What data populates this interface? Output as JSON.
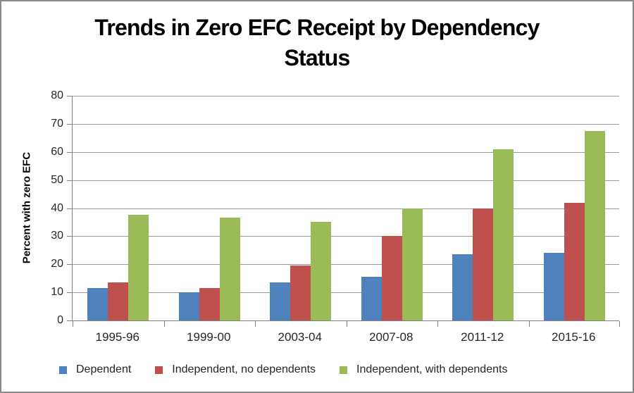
{
  "chart_data": {
    "type": "bar",
    "title": "Trends in Zero EFC Receipt by Dependency Status",
    "title_lines": [
      "Trends in Zero EFC Receipt by Dependency",
      "Status"
    ],
    "ylabel": "Percent with zero EFC",
    "xlabel": "",
    "categories": [
      "1995-96",
      "1999-00",
      "2003-04",
      "2007-08",
      "2011-12",
      "2015-16"
    ],
    "series": [
      {
        "name": "Dependent",
        "color": "#4F81BD",
        "values": [
          11.5,
          10,
          13.5,
          15.5,
          23.5,
          24
        ]
      },
      {
        "name": "Independent, no dependents",
        "color": "#C0504D",
        "values": [
          13.5,
          11.5,
          19.5,
          30,
          40,
          42
        ]
      },
      {
        "name": "Independent, with dependents",
        "color": "#9BBB59",
        "values": [
          37.5,
          36.5,
          35,
          40,
          61,
          67.5
        ]
      }
    ],
    "ylim": [
      0,
      80
    ],
    "yticks": [
      0,
      10,
      20,
      30,
      40,
      50,
      60,
      70,
      80
    ],
    "grid": true,
    "legend_position": "bottom"
  },
  "colors": {
    "gridline": "#999999",
    "axis": "#808080",
    "text": "#262626",
    "title": "#000000",
    "frame_border": "#8A8A8A",
    "background": "#FFFFFF"
  }
}
